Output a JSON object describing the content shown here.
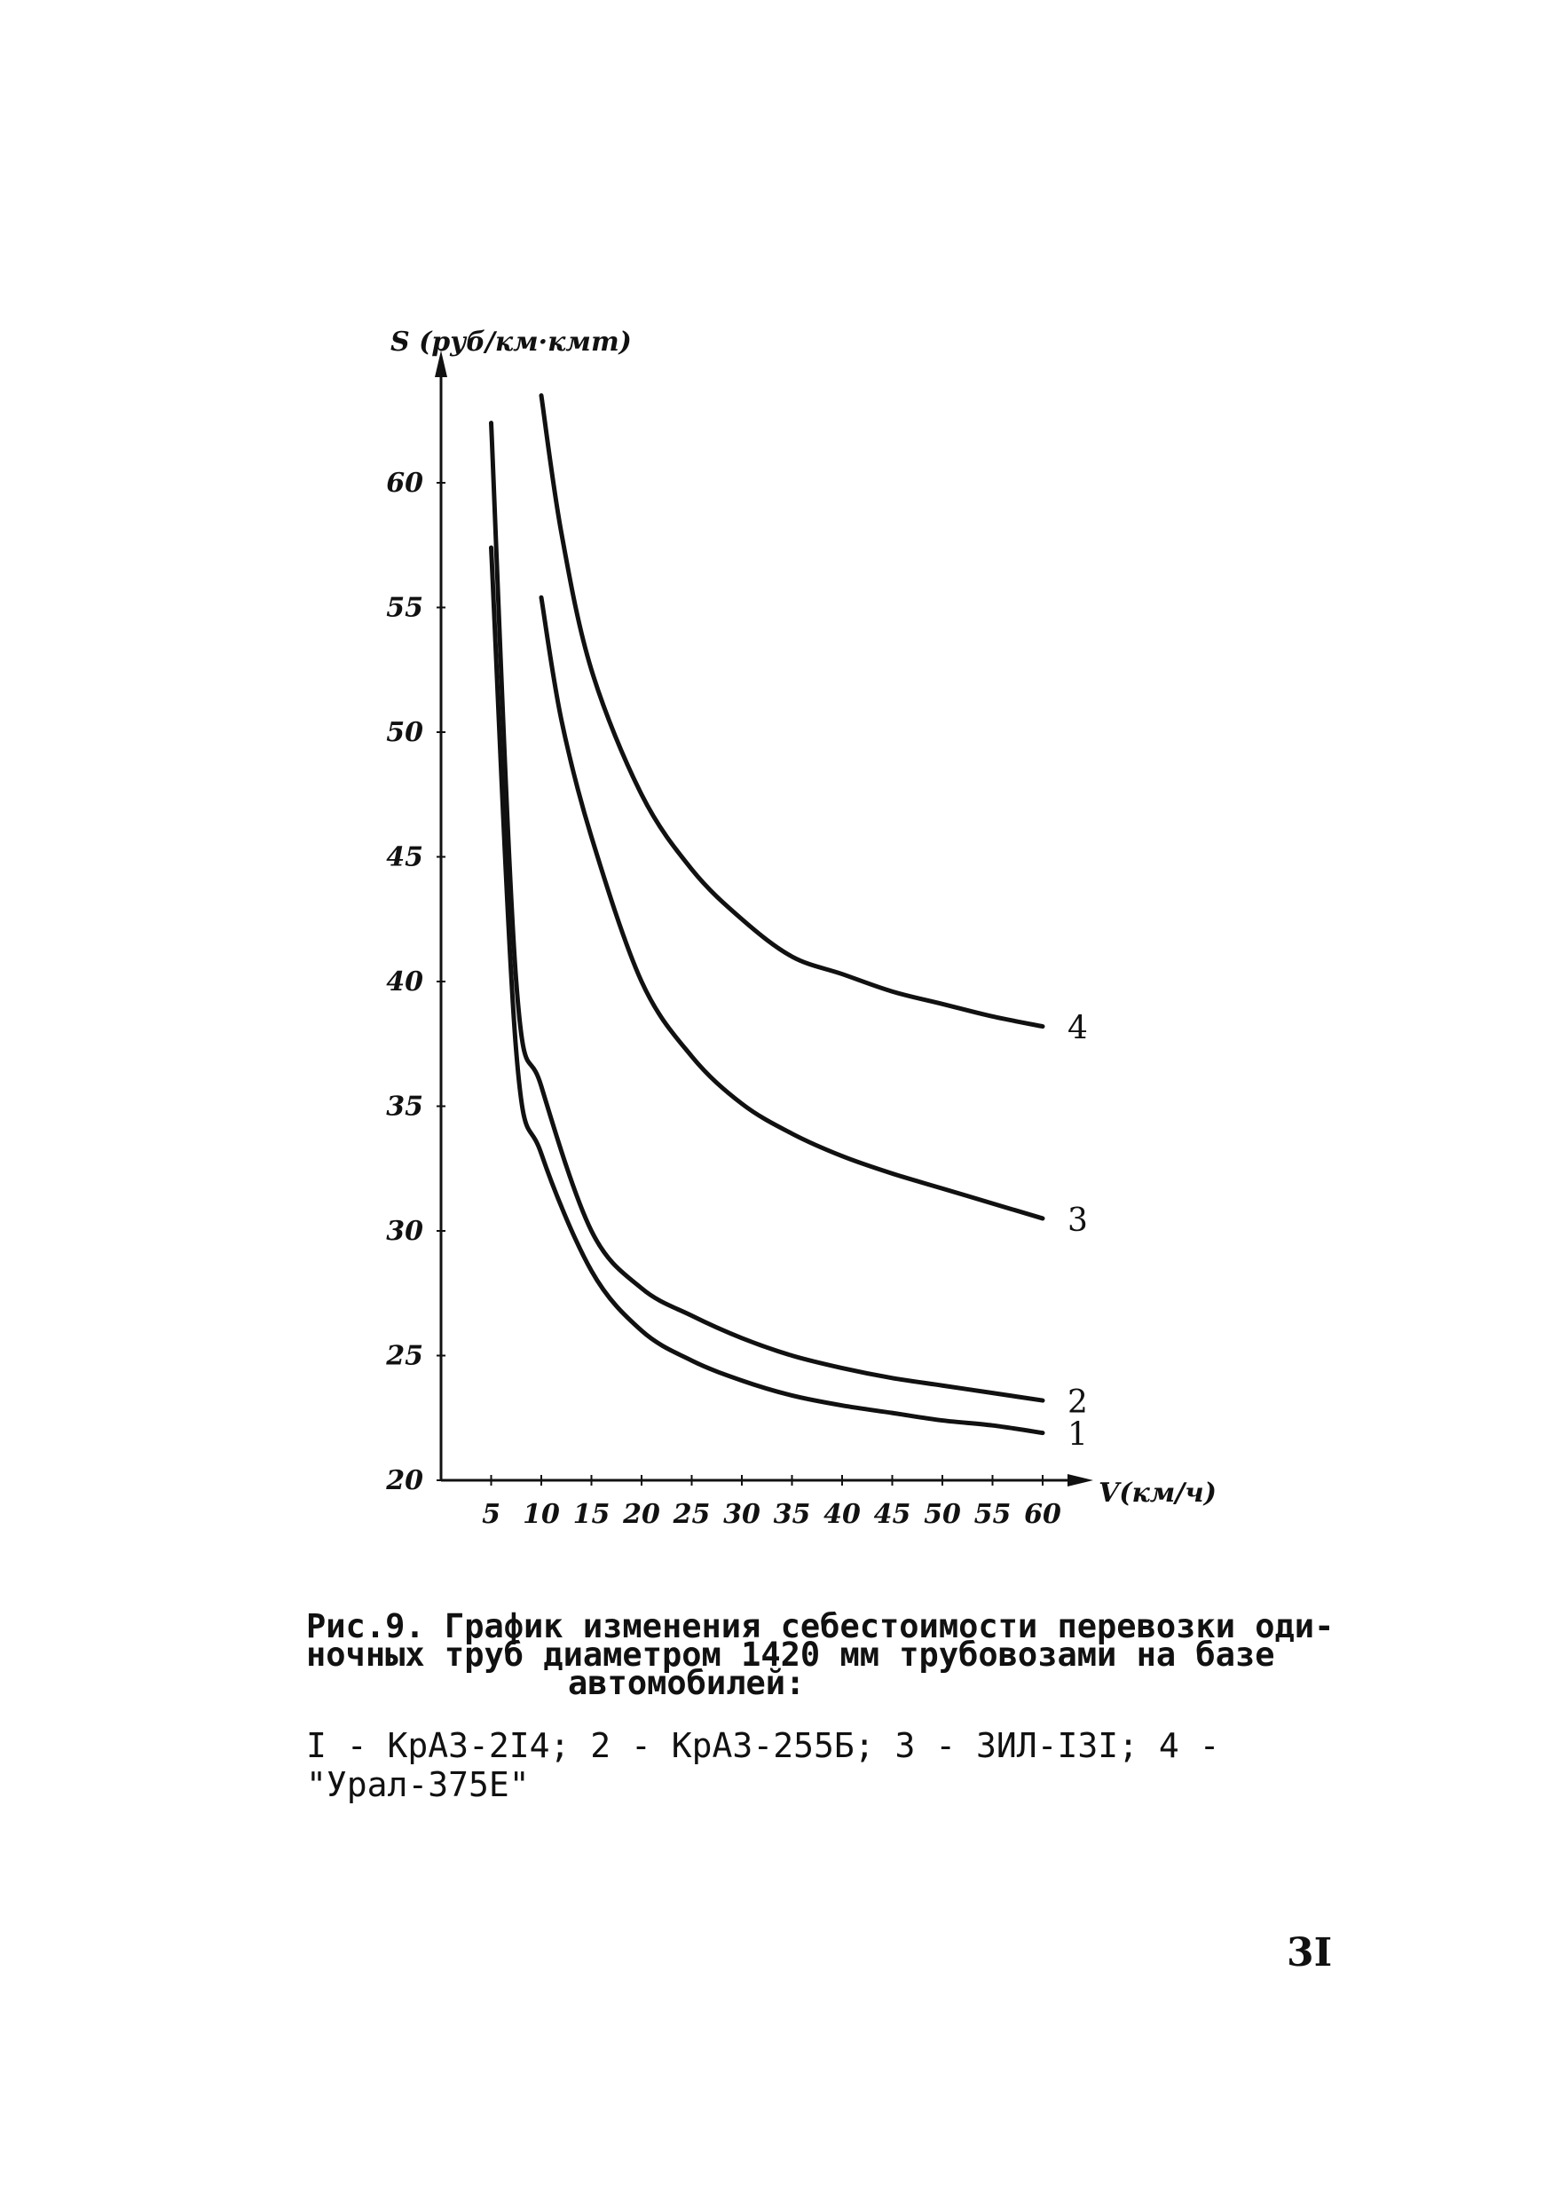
{
  "chart_data": {
    "type": "line",
    "xlabel": "V(км/ч)",
    "ylabel": "S (руб/км·кмт)",
    "x_ticks": [
      "5",
      "10",
      "15",
      "20",
      "25",
      "30",
      "35",
      "40",
      "45",
      "50",
      "55",
      "60"
    ],
    "y_ticks": [
      "20",
      "25",
      "30",
      "35",
      "40",
      "45",
      "50",
      "55",
      "60"
    ],
    "xlim": [
      0,
      64
    ],
    "ylim": [
      20,
      64
    ],
    "grid": false,
    "series": [
      {
        "name": "1",
        "points": [
          [
            5,
            57.4
          ],
          [
            7.5,
            37.2
          ],
          [
            10,
            33.1
          ],
          [
            15,
            28.4
          ],
          [
            20,
            26.0
          ],
          [
            25,
            24.8
          ],
          [
            30,
            24.0
          ],
          [
            35,
            23.4
          ],
          [
            40,
            23.0
          ],
          [
            45,
            22.7
          ],
          [
            50,
            22.4
          ],
          [
            55,
            22.2
          ],
          [
            60,
            21.9
          ]
        ]
      },
      {
        "name": "2",
        "points": [
          [
            5,
            62.4
          ],
          [
            7.5,
            40.0
          ],
          [
            10,
            35.8
          ],
          [
            15,
            30.0
          ],
          [
            20,
            27.7
          ],
          [
            25,
            26.6
          ],
          [
            30,
            25.7
          ],
          [
            35,
            25.0
          ],
          [
            40,
            24.5
          ],
          [
            45,
            24.1
          ],
          [
            50,
            23.8
          ],
          [
            55,
            23.5
          ],
          [
            60,
            23.2
          ]
        ]
      },
      {
        "name": "3",
        "points": [
          [
            10,
            55.4
          ],
          [
            12,
            50.5
          ],
          [
            15,
            45.8
          ],
          [
            20,
            40.0
          ],
          [
            25,
            37.0
          ],
          [
            30,
            35.1
          ],
          [
            35,
            33.9
          ],
          [
            40,
            33.0
          ],
          [
            45,
            32.3
          ],
          [
            50,
            31.7
          ],
          [
            55,
            31.1
          ],
          [
            60,
            30.5
          ]
        ]
      },
      {
        "name": "4",
        "points": [
          [
            10,
            63.5
          ],
          [
            12,
            58.0
          ],
          [
            15,
            52.5
          ],
          [
            20,
            47.5
          ],
          [
            25,
            44.5
          ],
          [
            30,
            42.5
          ],
          [
            35,
            41.0
          ],
          [
            40,
            40.3
          ],
          [
            45,
            39.6
          ],
          [
            50,
            39.1
          ],
          [
            55,
            38.6
          ],
          [
            60,
            38.2
          ]
        ]
      }
    ]
  },
  "caption": {
    "line1": "Рис.9. График изменения себестоимости перевозки оди-",
    "line2": "ночных труб диаметром 1420 мм трубовозами на базе",
    "line3": "автомобилей:",
    "legend": "I - КрАЗ-2I4; 2 - КрАЗ-255Б; 3 - ЗИЛ-I3I; 4 -\"Урал-375Е\""
  },
  "page_number": "3I"
}
